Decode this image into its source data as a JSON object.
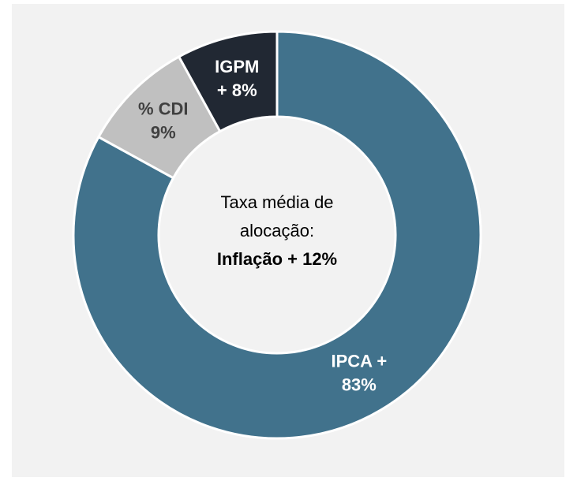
{
  "chart_data": {
    "type": "donut",
    "categories": [
      "IPCA +",
      "% CDI",
      "IGPM"
    ],
    "values": [
      83,
      9,
      8
    ],
    "value_labels": [
      "83%",
      "9%",
      "+ 8%"
    ],
    "colors": [
      "#41728c",
      "#c0c0c0",
      "#212833"
    ],
    "label_colors": [
      "#ffffff",
      "#404040",
      "#ffffff"
    ],
    "center_text": [
      "Taxa média de",
      "alocação:"
    ],
    "center_bold": "Inflação + 12%"
  }
}
